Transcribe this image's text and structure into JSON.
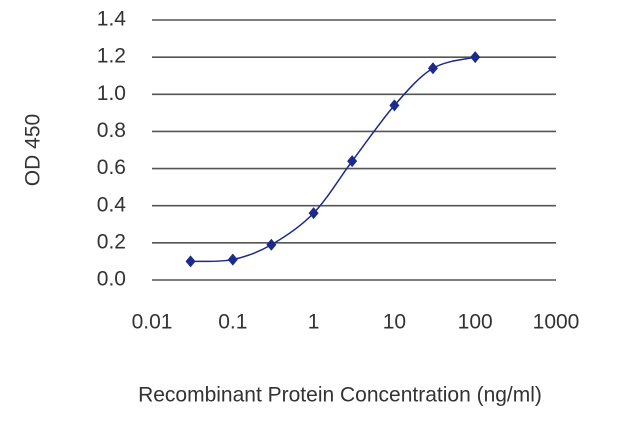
{
  "chart_data": {
    "type": "line",
    "x_label": "Recombinant Protein Concentration (ng/ml)",
    "y_label": "OD 450",
    "x_scale": "log",
    "x": [
      0.03,
      0.1,
      0.3,
      1,
      3,
      10,
      30,
      100
    ],
    "series": [
      {
        "color": "#1c2a8c",
        "values": [
          0.1,
          0.11,
          0.19,
          0.36,
          0.64,
          0.94,
          1.14,
          1.2
        ]
      }
    ],
    "xlim": [
      0.01,
      1000
    ],
    "xticks": [
      0.01,
      0.1,
      1,
      10,
      100,
      1000
    ],
    "ylim": [
      0,
      1.4
    ],
    "yticks": [
      {
        "value": 0,
        "label": "0.0"
      },
      0.2,
      0.4,
      0.6,
      0.8,
      {
        "value": 1,
        "label": "1.0"
      },
      1.2,
      1.4
    ],
    "grid": true
  }
}
